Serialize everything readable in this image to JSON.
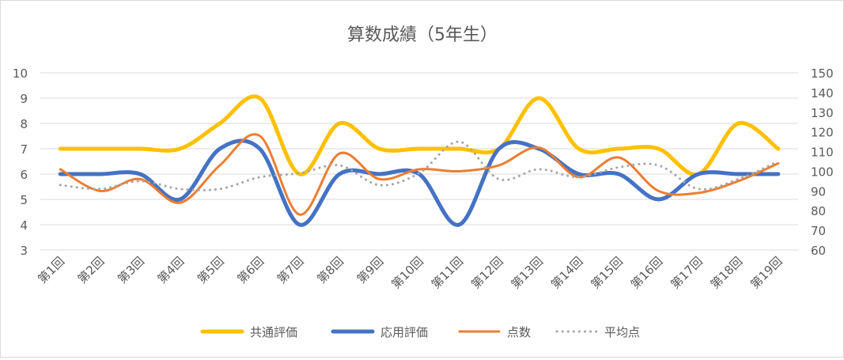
{
  "chart_data": {
    "type": "line",
    "title": "算数成績（5年生）",
    "categories": [
      "第1回",
      "第2回",
      "第3回",
      "第4回",
      "第5回",
      "第6回",
      "第7回",
      "第8回",
      "第9回",
      "第10回",
      "第11回",
      "第12回",
      "第13回",
      "第14回",
      "第15回",
      "第16回",
      "第17回",
      "第18回",
      "第19回"
    ],
    "y_left": {
      "min": 3,
      "max": 10,
      "step": 1,
      "ticks": [
        "3",
        "4",
        "5",
        "6",
        "7",
        "8",
        "9",
        "10"
      ]
    },
    "y_right": {
      "min": 60,
      "max": 150,
      "step": 10,
      "ticks": [
        "60",
        "70",
        "80",
        "90",
        "100",
        "110",
        "120",
        "130",
        "140",
        "150"
      ]
    },
    "grid": true,
    "smooth": true,
    "legend_position": "bottom",
    "series": [
      {
        "name": "共通評価",
        "axis": "left",
        "color": "#FFC000",
        "style": "solid-thick",
        "values": [
          7,
          7,
          7,
          7,
          8,
          9,
          6,
          8,
          7,
          7,
          7,
          7,
          9,
          7,
          7,
          7,
          6,
          8,
          7
        ]
      },
      {
        "name": "応用評価",
        "axis": "left",
        "color": "#4472C4",
        "style": "solid-thick",
        "values": [
          6,
          6,
          6,
          5,
          7,
          7,
          4,
          6,
          6,
          6,
          4,
          7,
          7,
          6,
          6,
          5,
          6,
          6,
          6
        ]
      },
      {
        "name": "点数",
        "axis": "right",
        "color": "#ED7D31",
        "style": "solid",
        "values": [
          101,
          90,
          96,
          84,
          103,
          118,
          78,
          109,
          96,
          101,
          100,
          103,
          112,
          97,
          107,
          90,
          89,
          95,
          104
        ]
      },
      {
        "name": "平均点",
        "axis": "right",
        "color": "#A5A5A5",
        "style": "dotted",
        "values": [
          93,
          91,
          95,
          91,
          91,
          97,
          99,
          103,
          93,
          99,
          115,
          96,
          101,
          97,
          102,
          103,
          91,
          96,
          105
        ]
      }
    ]
  }
}
